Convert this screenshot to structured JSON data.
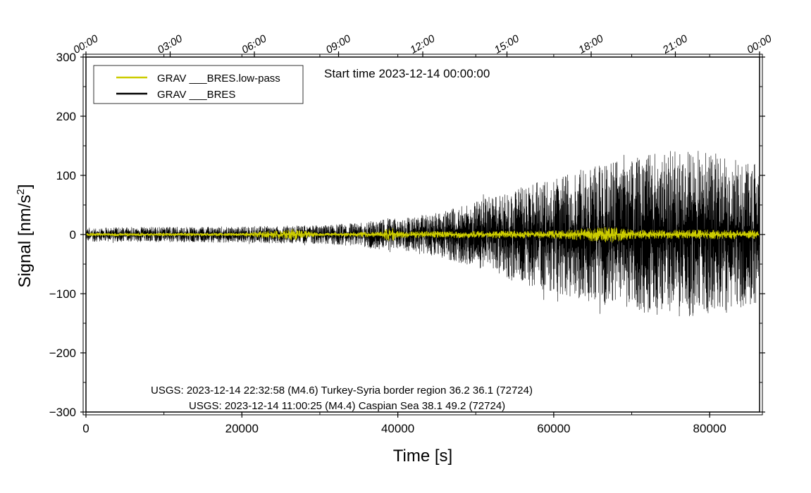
{
  "chart_data": {
    "type": "line",
    "title": "",
    "start_time_label": "Start time 2023-12-14 00:00:00",
    "xlabel": "Time [s]",
    "ylabel": "Signal [nm/s²]",
    "ylabel_main": "Signal [nm/s",
    "ylabel_sup": "2",
    "ylabel_end": "]",
    "xlim": [
      0,
      86400
    ],
    "ylim": [
      -300,
      300
    ],
    "x_ticks": [
      0,
      20000,
      40000,
      60000,
      80000
    ],
    "x_tick_labels": [
      "0",
      "20000",
      "40000",
      "60000",
      "80000"
    ],
    "y_ticks": [
      -300,
      -200,
      -100,
      0,
      100,
      200,
      300
    ],
    "y_tick_labels": [
      "−300",
      "−200",
      "−100",
      "0",
      "100",
      "200",
      "300"
    ],
    "top_ticks_seconds": [
      0,
      10800,
      21600,
      32400,
      43200,
      54000,
      64800,
      75600,
      86400
    ],
    "top_tick_labels": [
      "00:00",
      "03:00",
      "06:00",
      "09:00",
      "12:00",
      "15:00",
      "18:00",
      "21:00",
      "00:00"
    ],
    "series": [
      {
        "name": "GRAV ___BRES.low-pass",
        "color": "#cccc00",
        "envelope_x": [
          0,
          10000,
          20000,
          26500,
          30000,
          38000,
          39000,
          40000,
          50000,
          60000,
          67500,
          70000,
          80000,
          86400
        ],
        "envelope_amp": [
          3,
          3,
          3,
          10,
          3,
          5,
          14,
          6,
          6,
          7,
          14,
          8,
          8,
          8
        ]
      },
      {
        "name": "GRAV ___BRES",
        "color": "#000000",
        "envelope_x": [
          0,
          10000,
          20000,
          30000,
          35000,
          39000,
          40000,
          45000,
          50000,
          55000,
          60000,
          65000,
          70000,
          75000,
          80000,
          86400
        ],
        "envelope_amp": [
          12,
          13,
          14,
          16,
          20,
          30,
          25,
          38,
          55,
          80,
          100,
          115,
          130,
          145,
          140,
          120
        ]
      }
    ],
    "legend_position": "top-left",
    "annotations": [
      "USGS: 2023-12-14 22:32:58 (M4.6) Turkey-Syria border region 36.2 36.1 (72724)",
      "USGS: 2023-12-14 11:00:25 (M4.4) Caspian Sea 38.1 49.2 (72724)"
    ],
    "grid": false
  }
}
